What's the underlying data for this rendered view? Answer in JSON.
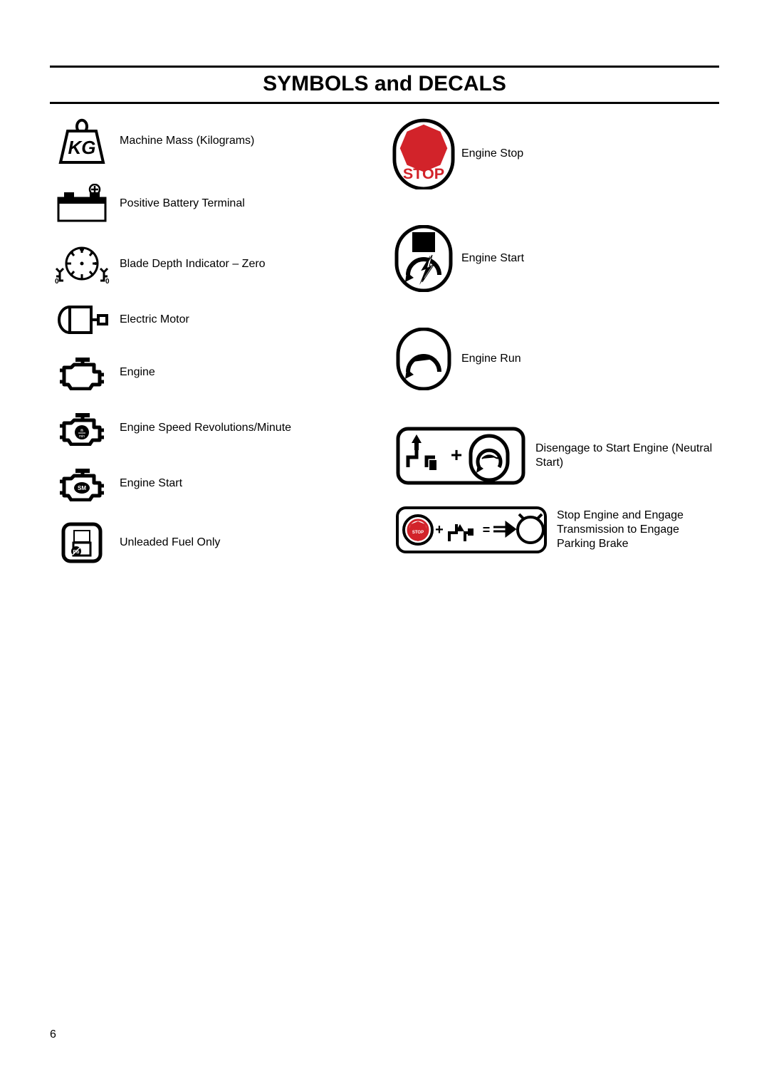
{
  "page": {
    "title": "SYMBOLS and DECALS",
    "page_number": "6"
  },
  "colors": {
    "black": "#000000",
    "red": "#d2232a",
    "white": "#ffffff"
  },
  "left_items": [
    {
      "key": "kg",
      "label": "Machine Mass (Kilograms)"
    },
    {
      "key": "battery",
      "label": "Positive Battery Terminal"
    },
    {
      "key": "depth-zero",
      "label": "Blade Depth Indicator – Zero"
    },
    {
      "key": "motor",
      "label": "Electric Motor"
    },
    {
      "key": "engine",
      "label": "Engine"
    },
    {
      "key": "rpm",
      "label": "Engine Speed Revolutions/Minute"
    },
    {
      "key": "eng-start2",
      "label": "Engine Start"
    },
    {
      "key": "unleaded",
      "label": "Unleaded Fuel Only"
    }
  ],
  "right_items": [
    {
      "key": "stop-sign",
      "label": "Engine Stop",
      "wide": false
    },
    {
      "key": "eng-start",
      "label": "Engine Start",
      "wide": false
    },
    {
      "key": "eng-run",
      "label": "Engine Run",
      "wide": false
    },
    {
      "key": "neutral",
      "label": "Disengage to Start Engine (Neutral Start)",
      "wide": true
    },
    {
      "key": "park-brake",
      "label": "Stop Engine and Engage Transmission to Engage Parking Brake",
      "wide": true
    }
  ],
  "icon_svg": {
    "kg": "<svg width='70' height='64' viewBox='0 0 70 64'><path d='M5 62 L15 18 L55 18 L65 62 Z' fill='none' stroke='#000' stroke-width='4'/><path d='M30 18 A7 9 0 1 1 40 18' fill='none' stroke='#000' stroke-width='4'/><text x='35' y='50' font-family='Arial' font-size='26' font-weight='bold' font-style='italic' text-anchor='middle' fill='#000'>KG</text></svg>",
    "battery": "<svg width='74' height='56' viewBox='0 0 74 56'><rect x='4' y='20' width='66' height='32' fill='none' stroke='#000' stroke-width='3'/><rect x='4' y='20' width='66' height='8' fill='#000'/><rect x='12' y='12' width='14' height='8' fill='#000'/><rect x='48' y='12' width='14' height='8' fill='#000'/><circle cx='55' cy='8' r='7' fill='none' stroke='#000' stroke-width='2.5'/><line x1='55' y1='3' x2='55' y2='13' stroke='#000' stroke-width='2.5'/><line x1='50' y1='8' x2='60' y2='8' stroke='#000' stroke-width='2.5'/></svg>",
    "depth-zero": "<svg width='82' height='58' viewBox='0 0 82 58'><circle cx='41' cy='28' r='22' fill='none' stroke='#000' stroke-width='3'/><circle cx='41' cy='28' r='2.5' fill='#000'/><g stroke='#000' stroke-width='3'><line x1='41' y1='6' x2='41' y2='13'/><line x1='25' y1='11' x2='30' y2='17'/><line x1='57' y1='11' x2='52' y2='17'/><line x1='19' y1='28' x2='26' y2='28'/><line x1='63' y1='28' x2='56' y2='28'/><line x1='25' y1='45' x2='30' y2='39'/><line x1='57' y1='45' x2='52' y2='39'/><line x1='41' y1='50' x2='41' y2='43'/></g><circle cx='41' cy='8' r='3' fill='#000'/><circle cx='27' cy='13' r='2' fill='#000'/><circle cx='55' cy='13' r='2' fill='#000'/><circle cx='60' cy='28' r='2' fill='#000'/><g stroke='#000' stroke-width='3' fill='none'><path d='M10 40 L10 52 L15 52 M10 46 L5 46 M10 40 L5 35 M10 40 L15 35'/><path d='M72 40 L72 52 L67 52 M72 46 L77 46 M72 40 L77 35 M72 40 L67 35'/></g><text x='3' y='56' font-size='10' font-weight='bold'>0</text><text x='74' y='56' font-size='10' font-weight='bold'>0</text></svg>",
    "motor": "<svg width='74' height='42' viewBox='0 0 74 42'><ellipse cx='20' cy='21' rx='15' ry='18' fill='none' stroke='#000' stroke-width='4'/><rect x='20' y='3' width='30' height='36' fill='#fff' stroke='#000' stroke-width='4'/><line x1='50' y1='21' x2='60' y2='21' stroke='#000' stroke-width='4'/><rect x='60' y='15' width='12' height='12' fill='none' stroke='#000' stroke-width='4'/></svg>",
    "engine": "<svg width='66' height='50' viewBox='0 0 66 50'><path d='M8 18 L8 42 L14 42 L18 48 L44 48 L48 42 L58 42 L58 24 L50 24 L50 14 L22 14 L18 18 Z' fill='none' stroke='#000' stroke-width='5' stroke-linejoin='round'/><rect x='24' y='4' width='20' height='6' fill='#000'/><line x1='34' y1='10' x2='34' y2='14' stroke='#000' stroke-width='5'/><line x1='2' y1='22' x2='8' y2='22' stroke='#000' stroke-width='5'/><line x1='2' y1='38' x2='8' y2='38' stroke='#000' stroke-width='5'/><line x1='58' y1='28' x2='64' y2='28' stroke='#000' stroke-width='5'/><line x1='58' y1='38' x2='64' y2='38' stroke='#000' stroke-width='5'/></svg>",
    "rpm": "<svg width='66' height='50' viewBox='0 0 66 50'><path d='M8 18 L8 42 L14 42 L18 48 L44 48 L48 42 L58 42 L58 24 L50 24 L50 14 L22 14 L18 18 Z' fill='none' stroke='#000' stroke-width='5' stroke-linejoin='round'/><rect x='24' y='4' width='20' height='6' fill='#000'/><line x1='34' y1='10' x2='34' y2='14' stroke='#000' stroke-width='5'/><line x1='2' y1='22' x2='8' y2='22' stroke='#000' stroke-width='5'/><line x1='2' y1='38' x2='8' y2='38' stroke='#000' stroke-width='5'/><line x1='58' y1='28' x2='64' y2='28' stroke='#000' stroke-width='5'/><line x1='58' y1='38' x2='64' y2='38' stroke='#000' stroke-width='5'/><circle cx='33' cy='31' r='10' fill='#000'/><text x='33' y='30' font-size='6' fill='#fff' text-anchor='middle' font-weight='bold'>n</text><line x1='28' y1='32' x2='38' y2='32' stroke='#fff' stroke-width='1'/><text x='33' y='38' font-size='5' fill='#fff' text-anchor='middle'>min</text></svg>",
    "eng-start2": "<svg width='66' height='50' viewBox='0 0 66 50'><path d='M8 18 L8 42 L14 42 L18 48 L44 48 L48 42 L58 42 L58 24 L50 24 L50 14 L22 14 L18 18 Z' fill='none' stroke='#000' stroke-width='5' stroke-linejoin='round'/><rect x='24' y='4' width='20' height='6' fill='#000'/><line x1='34' y1='10' x2='34' y2='14' stroke='#000' stroke-width='5'/><line x1='2' y1='22' x2='8' y2='22' stroke='#000' stroke-width='5'/><line x1='2' y1='38' x2='8' y2='38' stroke='#000' stroke-width='5'/><line x1='58' y1='28' x2='64' y2='28' stroke='#000' stroke-width='5'/><line x1='58' y1='38' x2='64' y2='38' stroke='#000' stroke-width='5'/><ellipse cx='33' cy='31' rx='11' ry='8' fill='#000'/><text x='33' y='34' font-size='8' fill='#fff' text-anchor='middle' font-weight='bold'>SM</text></svg>",
    "unleaded": "<svg width='60' height='60' viewBox='0 0 60 60'><rect x='4' y='4' width='52' height='52' rx='10' fill='none' stroke='#000' stroke-width='5'/><rect x='18' y='12' width='24' height='18' fill='#000'/><rect x='20' y='14' width='20' height='14' fill='#fff'/><rect x='18' y='30' width='24' height='18' fill='none' stroke='#000' stroke-width='3'/><circle cx='22' cy='42' r='7' fill='#000'/><text x='22' y='45' font-size='7' fill='#fff' text-anchor='middle' font-weight='bold'>Pb</text><line x1='17' y1='47' x2='27' y2='37' stroke='#fff' stroke-width='1.5'/></svg>",
    "stop-sign": "<svg width='92' height='100' viewBox='0 0 92 100'><path d='M46 2 A42 42 0 0 1 88 44 L88 58 A42 42 0 0 1 4 58 L4 44 A42 42 0 0 1 46 2 Z' fill='none' stroke='#000' stroke-width='5'/><polygon points='46,8 70,18 80,42 70,66 46,76 22,66 12,42 22,18' fill='#d2232a'/><text x='46' y='86' font-size='22' font-weight='bold' fill='#d2232a' text-anchor='middle'>STOP</text></svg>",
    "eng-start": "<svg width='84' height='94' viewBox='0 0 84 94'><path d='M42 2 A38 38 0 0 1 80 40 L80 54 A38 38 0 0 1 4 54 L4 40 A38 38 0 0 1 42 2 Z' fill='none' stroke='#000' stroke-width='5'/><rect x='26' y='10' width='32' height='28' fill='#000'/><path d='M20 70 A22 22 0 1 1 64 70' fill='none' stroke='#000' stroke-width='6'/><path d='M18 66 L28 74 L16 80 Z' fill='#000'/><path d='M54 42 L42 62 L48 60 L40 80 L56 56 L50 58 Z' fill='#fff' stroke='#000' stroke-width='1'/><path d='M54 42 L42 62 L48 60 L40 80 L56 56 L50 58 Z' fill='#000' transform='translate(-8,-4) scale(1.1)'/></svg>",
    "eng-run": "<svg width='80' height='88' viewBox='0 0 80 88'><path d='M40 2 A36 36 0 0 1 76 38 L76 50 A36 36 0 0 1 4 50 L4 38 A36 36 0 0 1 40 2 Z' fill='none' stroke='#000' stroke-width='5'/><path d='M18 62 A22 22 0 1 1 62 62' fill='none' stroke='#000' stroke-width='6'/><path d='M16 58 L26 66 L14 72 Z' fill='#000'/><path d='M24 48 Q36 36 50 44 Q58 48 56 44' fill='#000' stroke='#000' stroke-width='3'/></svg>",
    "neutral": "<svg width='184' height='84' viewBox='0 0 184 84'><rect x='4' y='4' width='176' height='76' rx='14' fill='none' stroke='#000' stroke-width='5'/><g stroke='#000' stroke-width='5' fill='none'><path d='M18 58 L18 44 L30 44 L30 30'/><path d='M44 58 L44 44 L56 44'/></g><path d='M37 24 L30 12 L23 24 L27 24 L27 34 L33 34 L33 24 Z' fill='#000'/><rect x='48' y='48' width='10' height='14' fill='#000'/><text x='86' y='50' font-size='28' font-weight='bold' text-anchor='middle'>+</text><g transform='translate(104,14)'><path d='M28 0 A26 26 0 0 1 54 26 L54 36 A26 26 0 0 1 2 36 L2 26 A26 26 0 0 1 28 0 Z' fill='none' stroke='#000' stroke-width='5'/><path d='M14 44 A16 16 0 1 1 42 44' fill='none' stroke='#000' stroke-width='5'/><path d='M12 40 L20 46 L10 52 Z' fill='#000'/><path d='M18 32 Q26 24 36 30 Q42 33 40 30' fill='#000' stroke='#000' stroke-width='2'/></g></svg>",
    "park-brake": "<svg width='214' height='68' viewBox='0 0 214 68'><rect x='3' y='3' width='208' height='62' rx='12' fill='none' stroke='#000' stroke-width='4'/><g transform='translate(10,10)'><circle cx='22' cy='24' r='20' fill='none' stroke='#000' stroke-width='4'/><circle cx='22' cy='24' r='14' fill='none' stroke='#d2232a' stroke-width='3'/><polygon points='22,12 32,16 36,26 32,36 22,40 12,36 8,26 12,16' fill='#d2232a'/><text x='22' y='29' font-size='6' fill='#fff' text-anchor='middle' font-weight='bold'>STOP</text></g><text x='62' y='40' font-size='20' font-weight='bold' text-anchor='middle'>+</text><g transform='translate(72,12)' stroke='#000' stroke-width='4' fill='none'><path d='M4 38 L4 26 L14 26 L14 14'/><path d='M26 38 L26 26 L36 26'/></g><path d='M86 34 L80 44 L92 44 Z' fill='#000' transform='translate(5,-8)'/><rect x='98' y='40' width='8' height='10' fill='#000' transform='translate(4,-8)'/><text x='128' y='40' font-size='18' font-weight='bold' text-anchor='middle'>=</text><g stroke='#000' stroke-width='3'><line x1='138' y1='30' x2='156' y2='30'/><line x1='138' y1='36' x2='156' y2='36'/><path d='M156 24 L168 33 L156 42 Z' fill='#000'/></g><circle cx='190' cy='34' r='18' fill='none' stroke='#000' stroke-width='4'/><line x1='180' y1='18' x2='174' y2='12' stroke='#000' stroke-width='4'/><line x1='200' y1='18' x2='206' y2='12' stroke='#000' stroke-width='4'/></svg>"
  }
}
